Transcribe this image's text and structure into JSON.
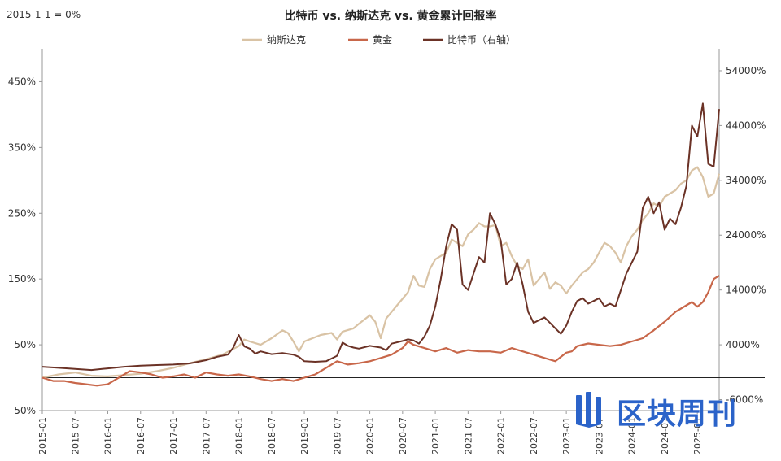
{
  "chart_data": {
    "type": "line",
    "title": "比特币 vs. 纳斯达克 vs. 黄金累计回报率",
    "base_note": "2015-1-1 = 0%",
    "left_axis": {
      "ticks": [
        -50,
        50,
        150,
        250,
        350,
        450
      ],
      "tick_labels": [
        "-50%",
        "50%",
        "150%",
        "250%",
        "350%",
        "450%"
      ],
      "ylim": [
        -50,
        500
      ]
    },
    "right_axis": {
      "ticks": [
        -6000,
        4000,
        14000,
        24000,
        34000,
        44000,
        54000
      ],
      "tick_labels": [
        "-6000%",
        "4000%",
        "14000%",
        "24000%",
        "34000%",
        "44000%",
        "54000%"
      ],
      "ylim": [
        -8000,
        58000
      ]
    },
    "x_tick_labels": [
      "2015-01",
      "2015-07",
      "2016-01",
      "2016-07",
      "2017-01",
      "2017-07",
      "2018-01",
      "2018-07",
      "2019-01",
      "2019-07",
      "2020-01",
      "2020-07",
      "2021-01",
      "2021-07",
      "2022-01",
      "2022-07",
      "2023-01",
      "2023-07",
      "2024-01",
      "2024-07",
      "2025-01"
    ],
    "x_tick_months": [
      0,
      6,
      12,
      18,
      24,
      30,
      36,
      42,
      48,
      54,
      60,
      66,
      72,
      78,
      84,
      90,
      96,
      102,
      108,
      114,
      120
    ],
    "x_range_months": [
      0,
      124
    ],
    "legend_position": "top",
    "colors": {
      "nasdaq": "#d9c3a5",
      "gold": "#c8674a",
      "bitcoin": "#6b3226",
      "axis": "#333333"
    },
    "series": [
      {
        "name": "纳斯达克",
        "axis": "left",
        "points": [
          [
            0,
            0
          ],
          [
            3,
            5
          ],
          [
            6,
            8
          ],
          [
            9,
            3
          ],
          [
            12,
            2
          ],
          [
            15,
            4
          ],
          [
            18,
            6
          ],
          [
            21,
            10
          ],
          [
            24,
            15
          ],
          [
            27,
            22
          ],
          [
            30,
            28
          ],
          [
            33,
            35
          ],
          [
            36,
            48
          ],
          [
            37,
            58
          ],
          [
            38,
            55
          ],
          [
            40,
            50
          ],
          [
            42,
            60
          ],
          [
            44,
            72
          ],
          [
            45,
            68
          ],
          [
            46,
            55
          ],
          [
            47,
            40
          ],
          [
            48,
            55
          ],
          [
            51,
            65
          ],
          [
            53,
            68
          ],
          [
            54,
            58
          ],
          [
            55,
            70
          ],
          [
            57,
            75
          ],
          [
            58,
            82
          ],
          [
            60,
            95
          ],
          [
            61,
            85
          ],
          [
            62,
            60
          ],
          [
            63,
            90
          ],
          [
            65,
            110
          ],
          [
            66,
            120
          ],
          [
            67,
            130
          ],
          [
            68,
            155
          ],
          [
            69,
            140
          ],
          [
            70,
            138
          ],
          [
            71,
            165
          ],
          [
            72,
            180
          ],
          [
            74,
            190
          ],
          [
            75,
            210
          ],
          [
            76,
            205
          ],
          [
            77,
            200
          ],
          [
            78,
            218
          ],
          [
            79,
            225
          ],
          [
            80,
            235
          ],
          [
            81,
            230
          ],
          [
            82,
            230
          ],
          [
            83,
            232
          ],
          [
            84,
            200
          ],
          [
            85,
            205
          ],
          [
            86,
            185
          ],
          [
            87,
            170
          ],
          [
            88,
            165
          ],
          [
            89,
            180
          ],
          [
            90,
            140
          ],
          [
            91,
            150
          ],
          [
            92,
            160
          ],
          [
            93,
            135
          ],
          [
            94,
            145
          ],
          [
            95,
            140
          ],
          [
            96,
            128
          ],
          [
            97,
            140
          ],
          [
            98,
            150
          ],
          [
            99,
            160
          ],
          [
            100,
            165
          ],
          [
            101,
            175
          ],
          [
            102,
            190
          ],
          [
            103,
            205
          ],
          [
            104,
            200
          ],
          [
            105,
            190
          ],
          [
            106,
            175
          ],
          [
            107,
            200
          ],
          [
            108,
            215
          ],
          [
            109,
            225
          ],
          [
            110,
            240
          ],
          [
            111,
            250
          ],
          [
            112,
            265
          ],
          [
            113,
            260
          ],
          [
            114,
            275
          ],
          [
            115,
            280
          ],
          [
            116,
            285
          ],
          [
            117,
            295
          ],
          [
            118,
            300
          ],
          [
            119,
            315
          ],
          [
            120,
            320
          ],
          [
            121,
            305
          ],
          [
            122,
            275
          ],
          [
            123,
            280
          ],
          [
            124,
            310
          ]
        ]
      },
      {
        "name": "黄金",
        "axis": "left",
        "points": [
          [
            0,
            0
          ],
          [
            2,
            -5
          ],
          [
            4,
            -5
          ],
          [
            6,
            -8
          ],
          [
            8,
            -10
          ],
          [
            10,
            -12
          ],
          [
            12,
            -10
          ],
          [
            14,
            0
          ],
          [
            16,
            10
          ],
          [
            18,
            8
          ],
          [
            20,
            5
          ],
          [
            22,
            0
          ],
          [
            24,
            2
          ],
          [
            26,
            5
          ],
          [
            28,
            0
          ],
          [
            30,
            8
          ],
          [
            32,
            5
          ],
          [
            34,
            3
          ],
          [
            36,
            5
          ],
          [
            38,
            2
          ],
          [
            40,
            -2
          ],
          [
            42,
            -5
          ],
          [
            44,
            -2
          ],
          [
            46,
            -5
          ],
          [
            48,
            0
          ],
          [
            50,
            5
          ],
          [
            52,
            15
          ],
          [
            54,
            25
          ],
          [
            56,
            20
          ],
          [
            58,
            22
          ],
          [
            60,
            25
          ],
          [
            62,
            30
          ],
          [
            64,
            35
          ],
          [
            66,
            45
          ],
          [
            67,
            55
          ],
          [
            68,
            50
          ],
          [
            70,
            45
          ],
          [
            72,
            40
          ],
          [
            74,
            45
          ],
          [
            76,
            38
          ],
          [
            78,
            42
          ],
          [
            80,
            40
          ],
          [
            82,
            40
          ],
          [
            84,
            38
          ],
          [
            86,
            45
          ],
          [
            88,
            40
          ],
          [
            90,
            35
          ],
          [
            92,
            30
          ],
          [
            94,
            25
          ],
          [
            96,
            38
          ],
          [
            97,
            40
          ],
          [
            98,
            48
          ],
          [
            100,
            52
          ],
          [
            102,
            50
          ],
          [
            104,
            48
          ],
          [
            106,
            50
          ],
          [
            108,
            55
          ],
          [
            110,
            60
          ],
          [
            112,
            72
          ],
          [
            114,
            85
          ],
          [
            116,
            100
          ],
          [
            118,
            110
          ],
          [
            119,
            115
          ],
          [
            120,
            108
          ],
          [
            121,
            115
          ],
          [
            122,
            130
          ],
          [
            123,
            150
          ],
          [
            124,
            155
          ]
        ]
      },
      {
        "name": "比特币（右轴）",
        "axis": "right",
        "points": [
          [
            0,
            0
          ],
          [
            3,
            -200
          ],
          [
            6,
            -400
          ],
          [
            9,
            -600
          ],
          [
            12,
            -300
          ],
          [
            15,
            0
          ],
          [
            18,
            200
          ],
          [
            21,
            300
          ],
          [
            24,
            400
          ],
          [
            27,
            600
          ],
          [
            30,
            1200
          ],
          [
            32,
            1800
          ],
          [
            34,
            2200
          ],
          [
            35,
            3500
          ],
          [
            36,
            5800
          ],
          [
            37,
            3700
          ],
          [
            38,
            3300
          ],
          [
            39,
            2400
          ],
          [
            40,
            2800
          ],
          [
            42,
            2300
          ],
          [
            44,
            2500
          ],
          [
            46,
            2200
          ],
          [
            47,
            1800
          ],
          [
            48,
            1000
          ],
          [
            50,
            900
          ],
          [
            52,
            1000
          ],
          [
            54,
            2000
          ],
          [
            55,
            4400
          ],
          [
            56,
            3800
          ],
          [
            57,
            3500
          ],
          [
            58,
            3300
          ],
          [
            60,
            3800
          ],
          [
            62,
            3500
          ],
          [
            63,
            3000
          ],
          [
            64,
            4200
          ],
          [
            66,
            4700
          ],
          [
            67,
            5000
          ],
          [
            68,
            4800
          ],
          [
            69,
            4200
          ],
          [
            70,
            5500
          ],
          [
            71,
            7500
          ],
          [
            72,
            11000
          ],
          [
            73,
            16000
          ],
          [
            74,
            22000
          ],
          [
            75,
            26000
          ],
          [
            76,
            25000
          ],
          [
            77,
            15000
          ],
          [
            78,
            14000
          ],
          [
            79,
            17000
          ],
          [
            80,
            20000
          ],
          [
            81,
            19000
          ],
          [
            82,
            28000
          ],
          [
            83,
            26000
          ],
          [
            84,
            23000
          ],
          [
            85,
            15000
          ],
          [
            86,
            16000
          ],
          [
            87,
            19000
          ],
          [
            88,
            15000
          ],
          [
            89,
            10000
          ],
          [
            90,
            8000
          ],
          [
            91,
            8500
          ],
          [
            92,
            9000
          ],
          [
            93,
            8000
          ],
          [
            94,
            7000
          ],
          [
            95,
            6000
          ],
          [
            96,
            7500
          ],
          [
            97,
            10000
          ],
          [
            98,
            12000
          ],
          [
            99,
            12500
          ],
          [
            100,
            11500
          ],
          [
            101,
            12000
          ],
          [
            102,
            12500
          ],
          [
            103,
            11000
          ],
          [
            104,
            11500
          ],
          [
            105,
            11000
          ],
          [
            106,
            14000
          ],
          [
            107,
            17000
          ],
          [
            108,
            19000
          ],
          [
            109,
            21000
          ],
          [
            110,
            29000
          ],
          [
            111,
            31000
          ],
          [
            112,
            28000
          ],
          [
            113,
            30000
          ],
          [
            114,
            25000
          ],
          [
            115,
            27000
          ],
          [
            116,
            26000
          ],
          [
            117,
            29000
          ],
          [
            118,
            33000
          ],
          [
            119,
            44000
          ],
          [
            120,
            42000
          ],
          [
            121,
            48000
          ],
          [
            122,
            37000
          ],
          [
            123,
            36500
          ],
          [
            124,
            47000
          ]
        ]
      }
    ]
  },
  "watermark": {
    "text": "区块周刊"
  }
}
